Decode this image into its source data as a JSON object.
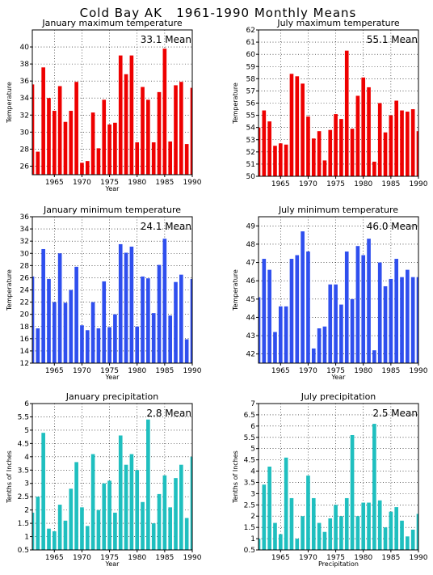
{
  "title": "Cold Bay AK   1961-1990 Monthly Means",
  "chart_data": [
    {
      "id": "jan-max",
      "type": "bar",
      "title": "January maximum temperature",
      "xlabel": "Year",
      "ylabel": "Temperature",
      "mean_label": "33.1 Mean",
      "color": "#ee0000",
      "ylim": [
        25,
        42
      ],
      "yticks": [
        26,
        28,
        30,
        32,
        34,
        36,
        38,
        40
      ],
      "xlim": [
        1961,
        1990
      ],
      "xticks": [
        1965,
        1970,
        1975,
        1980,
        1985,
        1990
      ],
      "x": [
        1961,
        1962,
        1963,
        1964,
        1965,
        1966,
        1967,
        1968,
        1969,
        1970,
        1971,
        1972,
        1973,
        1974,
        1975,
        1976,
        1977,
        1978,
        1979,
        1980,
        1981,
        1982,
        1983,
        1984,
        1985,
        1986,
        1987,
        1988,
        1989,
        1990
      ],
      "values": [
        35.6,
        27.7,
        37.6,
        34.0,
        32.5,
        35.4,
        31.2,
        32.5,
        35.9,
        26.4,
        26.6,
        32.3,
        28.1,
        33.8,
        30.9,
        31.1,
        39.0,
        36.8,
        39.0,
        28.8,
        35.3,
        33.8,
        28.8,
        34.7,
        39.8,
        28.9,
        35.5,
        35.9,
        28.6,
        35.2
      ],
      "grid": true
    },
    {
      "id": "jul-max",
      "type": "bar",
      "title": "July maximum temperature",
      "xlabel": "",
      "ylabel": "Temperature",
      "mean_label": "55.1 Mean",
      "color": "#ee0000",
      "ylim": [
        50,
        62
      ],
      "yticks": [
        50,
        51,
        52,
        53,
        54,
        55,
        56,
        57,
        58,
        59,
        60,
        61,
        62
      ],
      "xlim": [
        1961,
        1990
      ],
      "xticks": [
        1965,
        1970,
        1975,
        1980,
        1985,
        1990
      ],
      "x": [
        1961,
        1962,
        1963,
        1964,
        1965,
        1966,
        1967,
        1968,
        1969,
        1970,
        1971,
        1972,
        1973,
        1974,
        1975,
        1976,
        1977,
        1978,
        1979,
        1980,
        1981,
        1982,
        1983,
        1984,
        1985,
        1986,
        1987,
        1988,
        1989,
        1990
      ],
      "values": [
        54.0,
        55.4,
        54.5,
        52.5,
        52.7,
        52.6,
        58.4,
        58.2,
        57.6,
        54.9,
        53.1,
        53.7,
        51.3,
        53.8,
        55.1,
        54.7,
        60.3,
        53.9,
        56.6,
        58.1,
        57.3,
        51.2,
        56.0,
        53.6,
        55.0,
        56.2,
        55.4,
        55.3,
        55.5,
        53.7
      ],
      "grid": true
    },
    {
      "id": "jan-min",
      "type": "bar",
      "title": "January minimum temperature",
      "xlabel": "Year",
      "ylabel": "Temperature",
      "mean_label": "24.1 Mean",
      "color": "#2f4fee",
      "ylim": [
        12,
        36
      ],
      "yticks": [
        12,
        14,
        16,
        18,
        20,
        22,
        24,
        26,
        28,
        30,
        32,
        34,
        36
      ],
      "xlim": [
        1961,
        1990
      ],
      "xticks": [
        1965,
        1970,
        1975,
        1980,
        1985,
        1990
      ],
      "x": [
        1961,
        1962,
        1963,
        1964,
        1965,
        1966,
        1967,
        1968,
        1969,
        1970,
        1971,
        1972,
        1973,
        1974,
        1975,
        1976,
        1977,
        1978,
        1979,
        1980,
        1981,
        1982,
        1983,
        1984,
        1985,
        1986,
        1987,
        1988,
        1989,
        1990
      ],
      "values": [
        26.2,
        17.7,
        30.7,
        25.8,
        22.0,
        30.0,
        21.9,
        24.0,
        27.8,
        18.2,
        17.4,
        22.0,
        17.7,
        25.4,
        17.9,
        20.0,
        31.5,
        30.1,
        31.1,
        18.0,
        26.2,
        25.9,
        20.2,
        28.1,
        32.4,
        19.8,
        25.3,
        26.5,
        15.9,
        25.8
      ],
      "grid": true
    },
    {
      "id": "jul-min",
      "type": "bar",
      "title": "July minimum temperature",
      "xlabel": "Year",
      "ylabel": "Temperature",
      "mean_label": "46.0 Mean",
      "color": "#2f4fee",
      "ylim": [
        41.5,
        49.5
      ],
      "yticks": [
        42,
        43,
        44,
        45,
        46,
        47,
        48,
        49
      ],
      "xlim": [
        1961,
        1990
      ],
      "xticks": [
        1965,
        1970,
        1975,
        1980,
        1985,
        1990
      ],
      "x": [
        1961,
        1962,
        1963,
        1964,
        1965,
        1966,
        1967,
        1968,
        1969,
        1970,
        1971,
        1972,
        1973,
        1974,
        1975,
        1976,
        1977,
        1978,
        1979,
        1980,
        1981,
        1982,
        1983,
        1984,
        1985,
        1986,
        1987,
        1988,
        1989,
        1990
      ],
      "values": [
        45.1,
        47.2,
        46.6,
        43.2,
        44.6,
        44.6,
        47.2,
        47.4,
        48.7,
        47.6,
        42.3,
        43.4,
        43.5,
        45.8,
        45.8,
        44.7,
        47.6,
        45.0,
        47.9,
        47.4,
        48.3,
        42.2,
        47.0,
        45.7,
        46.1,
        47.2,
        46.2,
        46.6,
        46.2,
        46.2
      ],
      "grid": true
    },
    {
      "id": "jan-precip",
      "type": "bar",
      "title": "January precipitation",
      "xlabel": "Year",
      "ylabel": "Tenths of Inches",
      "mean_label": "2.8 Mean",
      "color": "#1fbfbf",
      "ylim": [
        0.5,
        6
      ],
      "yticks": [
        0.5,
        1,
        1.5,
        2,
        2.5,
        3,
        3.5,
        4,
        4.5,
        5,
        5.5,
        6
      ],
      "xlim": [
        1961,
        1990
      ],
      "xticks": [
        1965,
        1970,
        1975,
        1980,
        1985,
        1990
      ],
      "x": [
        1961,
        1962,
        1963,
        1964,
        1965,
        1966,
        1967,
        1968,
        1969,
        1970,
        1971,
        1972,
        1973,
        1974,
        1975,
        1976,
        1977,
        1978,
        1979,
        1980,
        1981,
        1982,
        1983,
        1984,
        1985,
        1986,
        1987,
        1988,
        1989,
        1990
      ],
      "values": [
        1.9,
        2.5,
        4.9,
        1.3,
        1.2,
        2.2,
        1.6,
        2.8,
        3.8,
        2.1,
        1.4,
        4.1,
        2.0,
        3.0,
        3.1,
        1.9,
        4.8,
        3.7,
        4.1,
        3.5,
        2.3,
        5.4,
        1.5,
        2.6,
        3.3,
        2.1,
        3.2,
        3.7,
        1.7,
        4.0
      ],
      "grid": true
    },
    {
      "id": "jul-precip",
      "type": "bar",
      "title": "July precipitation",
      "xlabel": "Precipitation",
      "ylabel": "Tenths of Inches",
      "mean_label": "2.5 Mean",
      "color": "#1fbfbf",
      "ylim": [
        0.5,
        7
      ],
      "yticks": [
        0.5,
        1,
        1.5,
        2,
        2.5,
        3,
        3.5,
        4,
        4.5,
        5,
        5.5,
        6,
        6.5,
        7
      ],
      "xlim": [
        1961,
        1990
      ],
      "xticks": [
        1965,
        1970,
        1975,
        1980,
        1985,
        1990
      ],
      "x": [
        1961,
        1962,
        1963,
        1964,
        1965,
        1966,
        1967,
        1968,
        1969,
        1970,
        1971,
        1972,
        1973,
        1974,
        1975,
        1976,
        1977,
        1978,
        1979,
        1980,
        1981,
        1982,
        1983,
        1984,
        1985,
        1986,
        1987,
        1988,
        1989,
        1990
      ],
      "values": [
        1.0,
        3.4,
        4.2,
        1.7,
        1.2,
        4.6,
        2.8,
        1.0,
        2.0,
        3.8,
        2.8,
        1.7,
        1.3,
        1.9,
        2.5,
        2.0,
        2.8,
        5.6,
        2.0,
        2.6,
        2.6,
        6.1,
        2.7,
        1.5,
        2.2,
        2.4,
        1.8,
        1.1,
        1.4,
        2.1
      ],
      "grid": true
    }
  ]
}
